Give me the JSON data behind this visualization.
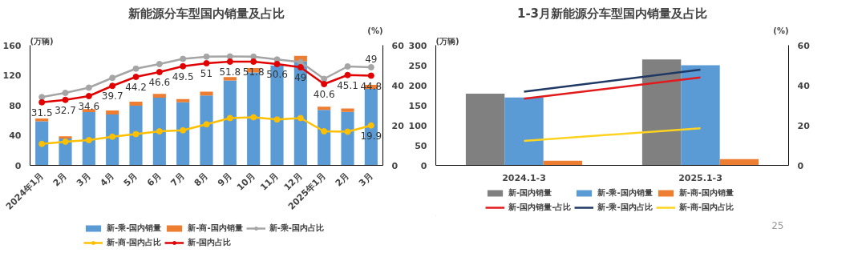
{
  "chart_data": [
    {
      "type": "bar",
      "title": "新能源分车型国内销量及占比",
      "ylabel": "(万辆)",
      "y2label": "(%)",
      "categories": [
        "2024年1月",
        "2月",
        "3月",
        "4月",
        "5月",
        "6月",
        "7月",
        "8月",
        "9月",
        "10月",
        "11月",
        "12月",
        "2025年1月",
        "2月",
        "3月"
      ],
      "stacked": true,
      "legend": "bottom",
      "marker": "circle",
      "ylim": [
        0,
        160
      ],
      "yticks": [
        0,
        40,
        80,
        120,
        160
      ],
      "y2lim": [
        0,
        60
      ],
      "y2ticks": [
        0,
        20,
        40,
        60
      ],
      "series": [
        {
          "name": "新-乘-国内销量",
          "color": "#5b9bd5",
          "values": [
            58.6,
            35.8,
            71,
            67.7,
            79.6,
            90.1,
            84,
            93,
            113,
            123.8,
            133,
            138.3,
            73.8,
            71.3,
            102
          ]
        },
        {
          "name": "新-商-国内销量",
          "color": "#ed7d31",
          "values": [
            3.7,
            2.9,
            4,
            5.4,
            5.1,
            5.1,
            4.3,
            5.1,
            4.6,
            5.8,
            null,
            7.6,
            4.4,
            4.4,
            5.1
          ]
        },
        {
          "name": "新-乘-国内占比",
          "type": "line",
          "axis": "y2",
          "color": "#a5a5a5",
          "values": [
            34.1,
            36.2,
            38.8,
            43.7,
            48.3,
            50.6,
            53.2,
            54.3,
            54.4,
            54.3,
            52.9,
            51.6,
            43.2,
            49.4,
            49
          ],
          "value_labels": [
            null,
            null,
            null,
            null,
            null,
            null,
            null,
            null,
            null,
            null,
            null,
            null,
            null,
            null,
            "49"
          ]
        },
        {
          "name": "新-商-国内占比",
          "type": "line",
          "axis": "y2",
          "color": "#ffc000",
          "values": [
            10.7,
            11.8,
            12.6,
            14.3,
            15.6,
            17,
            17.5,
            20.5,
            23.6,
            24,
            22.9,
            23.6,
            17,
            16.8,
            19.9
          ],
          "value_labels": [
            null,
            null,
            null,
            null,
            null,
            null,
            null,
            null,
            null,
            null,
            null,
            null,
            null,
            null,
            "19.9"
          ]
        },
        {
          "name": "新-国内占比",
          "type": "line",
          "axis": "y2",
          "color": "#e00000",
          "values": [
            31.5,
            32.7,
            34.6,
            39.7,
            44.2,
            46.6,
            49.5,
            51,
            51.8,
            51.8,
            50.6,
            49,
            40.6,
            45.1,
            44.8
          ],
          "value_labels": [
            "31.5",
            "32.7",
            "34.6",
            "39.7",
            "44.2",
            "46.6",
            "49.5",
            "51",
            "51.8",
            "51.8",
            "50.6",
            "49",
            "40.6",
            "45.1",
            "44.8"
          ]
        }
      ]
    },
    {
      "type": "bar",
      "title": "1-3月新能源分车型国内销量及占比",
      "ylabel": "(万辆)",
      "y2label": "(%)",
      "categories": [
        "2024.1-3",
        "2025.1-3"
      ],
      "legend": "bottom",
      "ylim": [
        0,
        300
      ],
      "yticks": [
        0,
        50,
        100,
        150,
        200,
        250,
        300
      ],
      "y2lim": [
        0,
        60
      ],
      "y2ticks": [
        0,
        20,
        40,
        60
      ],
      "annotations": [
        "25"
      ],
      "series": [
        {
          "name": "新-国内销量",
          "color": "#808080",
          "values": [
            179,
            264.6
          ]
        },
        {
          "name": "新-乘-国内销量",
          "color": "#5b9bd5",
          "values": [
            169.3,
            249.8
          ]
        },
        {
          "name": "新-商-国内销量",
          "color": "#ed7d31",
          "values": [
            11.6,
            15.5
          ]
        },
        {
          "name": "新-国内销量-占比",
          "type": "line",
          "axis": "y2",
          "color": "#e31a1c",
          "values": [
            33.3,
            43.9
          ]
        },
        {
          "name": "新-乘-国内占比",
          "type": "line",
          "axis": "y2",
          "color": "#1f3864",
          "values": [
            36.8,
            47.8
          ]
        },
        {
          "name": "新-商-国内占比",
          "type": "line",
          "axis": "y2",
          "color": "#ffd320",
          "values": [
            12.2,
            18.5
          ]
        }
      ]
    }
  ]
}
